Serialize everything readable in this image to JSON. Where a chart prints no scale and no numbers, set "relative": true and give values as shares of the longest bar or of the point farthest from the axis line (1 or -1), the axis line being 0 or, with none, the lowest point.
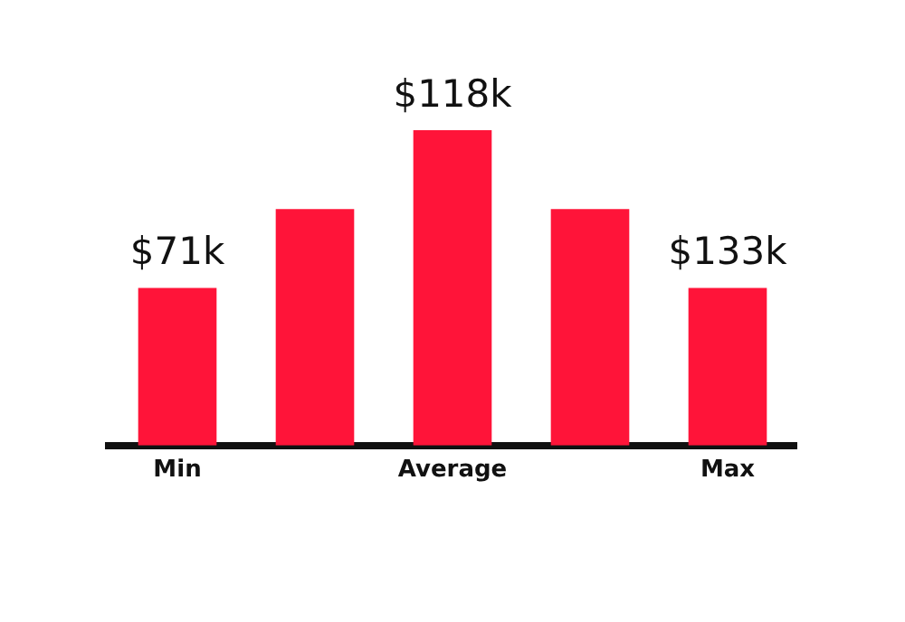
{
  "chart_data": {
    "type": "bar",
    "relative": true,
    "categories": [
      "Min",
      null,
      "Average",
      null,
      "Max"
    ],
    "values": [
      0.5,
      0.75,
      1,
      0.75,
      0.5
    ],
    "annotations": [
      {
        "text": "$71k",
        "x": "Min",
        "y": 0.5
      },
      {
        "text": "$118k",
        "x": "Average",
        "y": 1
      },
      {
        "text": "$133k",
        "x": "Max",
        "y": 0.5
      }
    ],
    "color": "#ff1439",
    "grid": false,
    "legend": false
  }
}
